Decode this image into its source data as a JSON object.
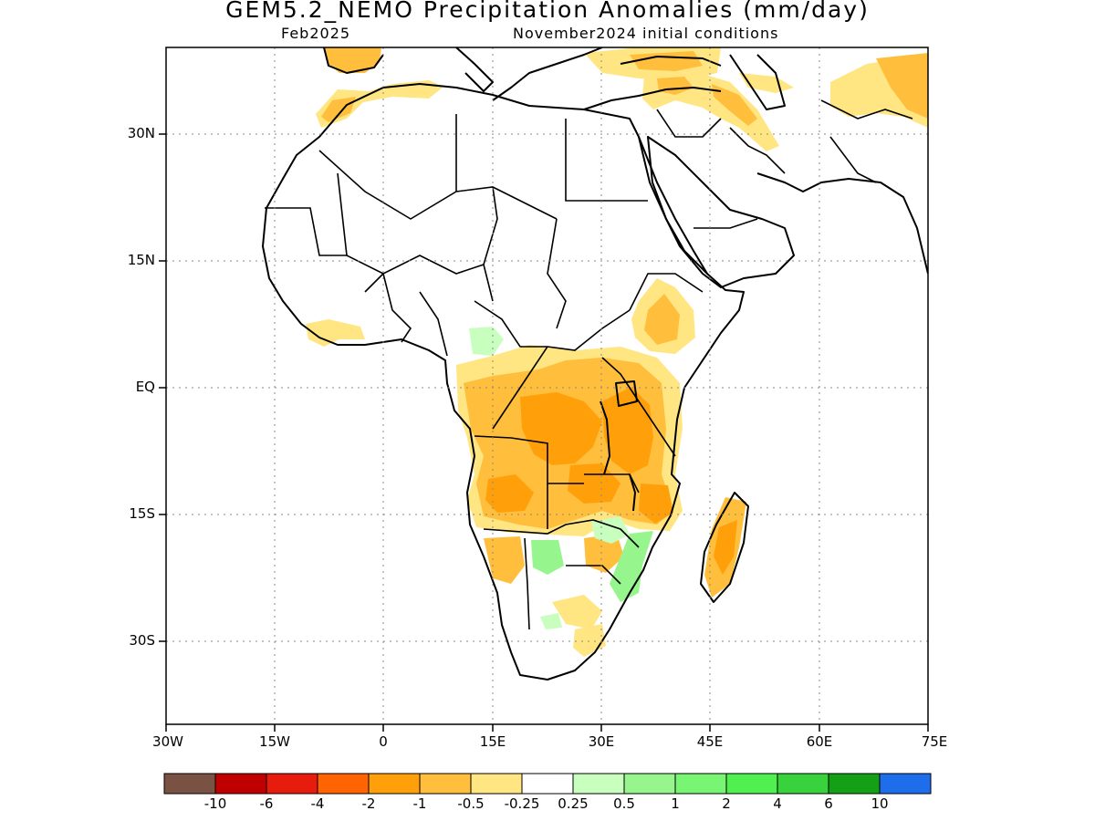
{
  "map": {
    "title": "GEM5.2_NEMO Precipitation Anomalies (mm/day)",
    "target_month": "Feb2025",
    "initial_conditions": "November2024 initial conditions",
    "region": "Africa and Middle East",
    "lon_range": [
      -30,
      75
    ],
    "lat_range": [
      -40,
      40
    ]
  },
  "axes": {
    "y_ticks": [
      "30N",
      "15N",
      "EQ",
      "15S",
      "30S"
    ],
    "x_ticks": [
      "30W",
      "15W",
      "0",
      "15E",
      "30E",
      "45E",
      "60E",
      "75E"
    ]
  },
  "legend": {
    "colors": [
      "#7a5244",
      "#c00000",
      "#e81c0c",
      "#ff6400",
      "#ffa00a",
      "#ffbe3c",
      "#ffe682",
      "#ffffff",
      "#c8ffbe",
      "#96f58c",
      "#78f573",
      "#50f050",
      "#37d23c",
      "#14a014",
      "#1e6eeb"
    ],
    "labels": [
      "-10",
      "-6",
      "-4",
      "-2",
      "-1",
      "-0.5",
      "-0.25",
      "0.25",
      "0.5",
      "1",
      "2",
      "4",
      "6",
      "10"
    ]
  }
}
